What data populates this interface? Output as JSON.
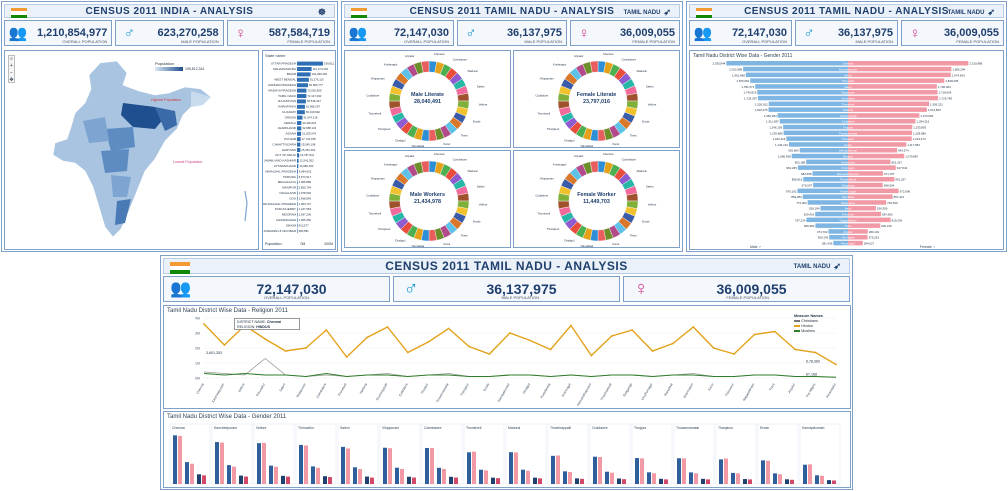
{
  "colors": {
    "male": "#1b9bd1",
    "female": "#d23c8e",
    "accent": "#1f3f6e",
    "line_orange": "#e3a21a",
    "line_green": "#2f7d2a"
  },
  "dash1": {
    "title": "CENSUS 2011 INDIA - ANALYSIS",
    "kpis": [
      {
        "icon": "people-icon",
        "value": "1,210,854,977",
        "label": "OVERALL POPULATION"
      },
      {
        "icon": "male-icon",
        "value": "623,270,258",
        "label": "MALE POPULATION"
      },
      {
        "icon": "female-icon",
        "value": "587,584,719",
        "label": "FEMALE POPULATION"
      }
    ],
    "map": {
      "legend_title": "Population",
      "legend_max": "199,812,341",
      "highest_label": "Highest Population",
      "lowest_label": "Lowest Population"
    },
    "bar_header": "State name",
    "bar_footer_label": "Population",
    "bar_axis": [
      "0M",
      "200M"
    ],
    "states": [
      {
        "name": "UTTAR PRADESH",
        "value": "199,812,341",
        "v": 199.8
      },
      {
        "name": "MAHARASHTRA",
        "value": "112,374,333",
        "v": 112.4
      },
      {
        "name": "BIHAR",
        "value": "104,099,452",
        "v": 104.1
      },
      {
        "name": "WEST BENGAL",
        "value": "91,276,115",
        "v": 91.3
      },
      {
        "name": "ANDHRA PRADESH",
        "value": "84,580,777",
        "v": 84.6
      },
      {
        "name": "MADHYA PRADESH",
        "value": "72,626,809",
        "v": 72.6
      },
      {
        "name": "TAMIL NADU",
        "value": "72,147,030",
        "v": 72.1
      },
      {
        "name": "RAJASTHAN",
        "value": "68,548,437",
        "v": 68.5
      },
      {
        "name": "KARNATAKA",
        "value": "61,095,297",
        "v": 61.1
      },
      {
        "name": "GUJARAT",
        "value": "60,439,692",
        "v": 60.4
      },
      {
        "name": "ORISSA",
        "value": "41,974,218",
        "v": 42.0
      },
      {
        "name": "KERALA",
        "value": "33,406,061",
        "v": 33.4
      },
      {
        "name": "JHARKHAND",
        "value": "32,988,134",
        "v": 33.0
      },
      {
        "name": "ASSAM",
        "value": "31,205,576",
        "v": 31.2
      },
      {
        "name": "PUNJAB",
        "value": "27,743,338",
        "v": 27.7
      },
      {
        "name": "CHHATTISGARH",
        "value": "25,545,198",
        "v": 25.5
      },
      {
        "name": "HARYANA",
        "value": "25,351,462",
        "v": 25.4
      },
      {
        "name": "NCT OF DELHI",
        "value": "16,787,941",
        "v": 16.8
      },
      {
        "name": "JAMMU AND KASHMIR",
        "value": "12,541,302",
        "v": 12.5
      },
      {
        "name": "UTTARAKHAND",
        "value": "10,086,292",
        "v": 10.1
      },
      {
        "name": "HIMACHAL PRADESH",
        "value": "6,864,602",
        "v": 6.9
      },
      {
        "name": "TRIPURA",
        "value": "3,673,917",
        "v": 3.7
      },
      {
        "name": "MEGHALAYA",
        "value": "2,966,889",
        "v": 3.0
      },
      {
        "name": "MANIPUR",
        "value": "2,855,794",
        "v": 2.9
      },
      {
        "name": "NAGALAND",
        "value": "1,978,502",
        "v": 2.0
      },
      {
        "name": "GOA",
        "value": "1,458,545",
        "v": 1.5
      },
      {
        "name": "ARUNACHAL PRADESH",
        "value": "1,383,727",
        "v": 1.4
      },
      {
        "name": "PUDUCHERRY",
        "value": "1,247,953",
        "v": 1.2
      },
      {
        "name": "MIZORAM",
        "value": "1,097,206",
        "v": 1.1
      },
      {
        "name": "CHANDIGARH",
        "value": "1,055,450",
        "v": 1.1
      },
      {
        "name": "SIKKIM",
        "value": "610,577",
        "v": 0.6
      },
      {
        "name": "ANDAMAN & NICOBAR",
        "value": "380,581",
        "v": 0.4
      }
    ]
  },
  "dash2": {
    "title": "CENSUS 2011 TAMIL NADU - ANALYSIS",
    "logo": "TAMIL NADU",
    "kpis": [
      {
        "icon": "people-icon",
        "value": "72,147,030",
        "label": "OVERALL POPULATION"
      },
      {
        "icon": "male-icon",
        "value": "36,137,975",
        "label": "MALE POPULATION"
      },
      {
        "icon": "female-icon",
        "value": "36,009,055",
        "label": "FEMALE POPULATION"
      }
    ],
    "donuts": [
      {
        "label": "Male Literate",
        "value": "28,040,491"
      },
      {
        "label": "Female Literate",
        "value": "23,797,016"
      },
      {
        "label": "Male Workers",
        "value": "21,434,978"
      },
      {
        "label": "Female Worker",
        "value": "11,449,703"
      }
    ]
  },
  "dash3": {
    "title": "CENSUS 2011 TAMIL NADU - ANALYSIS",
    "logo": "TAMIL NADU",
    "kpis": [
      {
        "icon": "people-icon",
        "value": "72,147,030",
        "label": "OVERALL POPULATION"
      },
      {
        "icon": "male-icon",
        "value": "36,137,975",
        "label": "MALE POPULATION"
      },
      {
        "icon": "female-icon",
        "value": "36,009,055",
        "label": "FEMALE POPULATION"
      }
    ],
    "chart_title": "Tamil Nadu District Wise Data - Gender 2011",
    "axis_male": "Male",
    "axis_female": "Female",
    "districts": [
      {
        "name": "Chennai",
        "male": "2,335,844",
        "female": "2,310,888"
      },
      {
        "name": "Kancheepuram",
        "male": "2,012,958",
        "female": "1,985,294"
      },
      {
        "name": "Vellore",
        "male": "1,961,688",
        "female": "1,974,643"
      },
      {
        "name": "Thiruvallur",
        "male": "1,876,062",
        "female": "1,849,635"
      },
      {
        "name": "Salem",
        "male": "1,781,571",
        "female": "1,706,464"
      },
      {
        "name": "Viluppuram",
        "male": "1,740,819",
        "female": "1,718,054"
      },
      {
        "name": "Coimbatore",
        "male": "1,729,297",
        "female": "1,729,748"
      },
      {
        "name": "Tirunelveli",
        "male": "1,520,912",
        "female": "1,556,321"
      },
      {
        "name": "Madurai",
        "male": "1,526,475",
        "female": "1,514,563"
      },
      {
        "name": "Tiruchirappalli",
        "male": "1,352,284",
        "female": "1,370,006"
      },
      {
        "name": "Cuddalore",
        "male": "1,311,697",
        "female": "1,294,216"
      },
      {
        "name": "Tiruppur",
        "male": "1,246,159",
        "female": "1,233,893"
      },
      {
        "name": "Tiruvannamalai",
        "male": "1,235,889",
        "female": "1,228,986"
      },
      {
        "name": "Thanjavur",
        "male": "1,182,416",
        "female": "1,223,474"
      },
      {
        "name": "Erode",
        "male": "1,134,191",
        "female": "1,117,553"
      },
      {
        "name": "Kanniyakumari",
        "male": "926,800",
        "female": "943,574"
      },
      {
        "name": "Dindigul",
        "male": "1,080,938",
        "female": "1,079,887"
      },
      {
        "name": "Pudukkottai",
        "male": "803,188",
        "female": "815,157"
      },
      {
        "name": "Krishnagiri",
        "male": "962,265",
        "female": "917,544"
      },
      {
        "name": "Ramanathapuram",
        "male": "682,658",
        "female": "671,787"
      },
      {
        "name": "Thoothukkudi",
        "male": "858,919",
        "female": "891,257"
      },
      {
        "name": "Sivaganga",
        "male": "670,597",
        "female": "668,504"
      },
      {
        "name": "Virudhunagar",
        "male": "970,192",
        "female": "972,096"
      },
      {
        "name": "Namakkal",
        "male": "869,280",
        "female": "857,321"
      },
      {
        "name": "Dharmapuri",
        "male": "774,303",
        "female": "732,540"
      },
      {
        "name": "Karur",
        "male": "528,184",
        "female": "536,309"
      },
      {
        "name": "Thiruvarur",
        "male": "629,416",
        "female": "634,905"
      },
      {
        "name": "Nagapattinam",
        "male": "797,214",
        "female": "819,236"
      },
      {
        "name": "Theni",
        "male": "625,683",
        "female": "620,216"
      },
      {
        "name": "Ariyalur",
        "male": "374,703",
        "female": "380,191"
      },
      {
        "name": "The Nilgiris",
        "male": "360,143",
        "female": "375,251"
      },
      {
        "name": "Perambalur",
        "male": "281,436",
        "female": "284,027"
      }
    ]
  },
  "dash4": {
    "title": "CENSUS 2011 TAMIL NADU - ANALYSIS",
    "logo": "TAMIL NADU",
    "kpis": [
      {
        "icon": "people-icon",
        "value": "72,147,030",
        "label": "OVERALL POPULATION"
      },
      {
        "icon": "male-icon",
        "value": "36,137,975",
        "label": "MALE POPULATION"
      },
      {
        "icon": "female-icon",
        "value": "36,009,055",
        "label": "FEMALE POPULATION"
      }
    ],
    "religion_title": "Tamil Nadu District Wise Data - Religion 2011",
    "gender_title": "Tamil Nadu District Wise Data - Gender 2011",
    "tooltip": {
      "district_label": "DISTRICT NAME",
      "district_value": "Chennai",
      "religion_label": "RELIGION",
      "religion_value": "HINDUS"
    },
    "legend_title": "Measure Names",
    "legend": [
      "Christians",
      "Hindus",
      "Muslims"
    ],
    "annotations": [
      "3,601,353",
      "6,78,360",
      "67,168"
    ],
    "y_ticks": [
      "4M",
      "3M",
      "2M",
      "1M",
      "0M"
    ]
  }
}
